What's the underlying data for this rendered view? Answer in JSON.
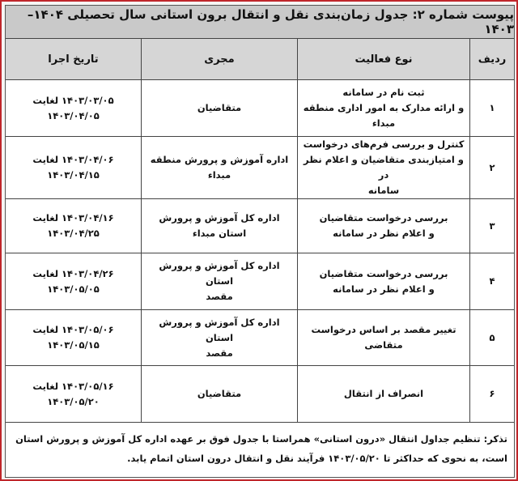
{
  "title": "پیوست شماره ۲: جدول زمان‌بندی نقل و انتقال برون استانی سال تحصیلی ۱۴۰۴–۱۴۰۳",
  "headers": {
    "row": "ردیف",
    "activity": "نوع فعالیت",
    "executor": "مجری",
    "date": "تاریخ اجرا"
  },
  "rows": [
    {
      "num": "۱",
      "activity": [
        "ثبت نام در سامانه",
        "و ارائه مدارک به امور اداری منطقه مبداء"
      ],
      "executor": [
        "متقاضیان"
      ],
      "date": "۱۴۰۳/۰۳/۰۵ لغایت ۱۴۰۳/۰۴/۰۵"
    },
    {
      "num": "۲",
      "activity": [
        "کنترل و بررسی فرم‌های درخواست",
        "و امتیازبندی متقاضیان و اعلام نظر در",
        "سامانه"
      ],
      "executor": [
        "اداره آموزش و پرورش منطقه مبداء"
      ],
      "date": "۱۴۰۳/۰۴/۰۶ لغایت ۱۴۰۳/۰۴/۱۵"
    },
    {
      "num": "۳",
      "activity": [
        "بررسی درخواست متقاضیان",
        "و اعلام نظر در سامانه"
      ],
      "executor": [
        "اداره کل آموزش و پرورش استان مبداء"
      ],
      "date": "۱۴۰۳/۰۴/۱۶ لغایت ۱۴۰۳/۰۴/۲۵"
    },
    {
      "num": "۴",
      "activity": [
        "بررسی درخواست متقاضیان",
        "و اعلام نظر در سامانه"
      ],
      "executor": [
        "اداره کل آموزش و پرورش استان",
        "مقصد"
      ],
      "date": "۱۴۰۳/۰۴/۲۶ لغایت ۱۴۰۳/۰۵/۰۵"
    },
    {
      "num": "۵",
      "activity": [
        "تغییر مقصد بر اساس درخواست متقاضی"
      ],
      "executor": [
        "اداره کل آموزش و پرورش استان",
        "مقصد"
      ],
      "date": "۱۴۰۳/۰۵/۰۶ لغایت ۱۴۰۳/۰۵/۱۵"
    },
    {
      "num": "۶",
      "activity": [
        "انصراف از انتقال"
      ],
      "executor": [
        "متقاضیان"
      ],
      "date": "۱۴۰۳/۰۵/۱۶ لغایت ۱۴۰۳/۰۵/۲۰"
    }
  ],
  "note": "تذکر: تنظیم جداول انتقال «درون استانی» همراستا با جدول فوق بر عهده اداره کل آموزش و پرورش استان است، به نحوی که حداکثر تا ۱۴۰۳/۰۵/۲۰ فرآیند نقل و انتقال درون استان اتمام یابد.",
  "colors": {
    "border_accent": "#c0262b",
    "header_bg": "#d6d6d6",
    "title_bg": "#c9c9c9"
  }
}
